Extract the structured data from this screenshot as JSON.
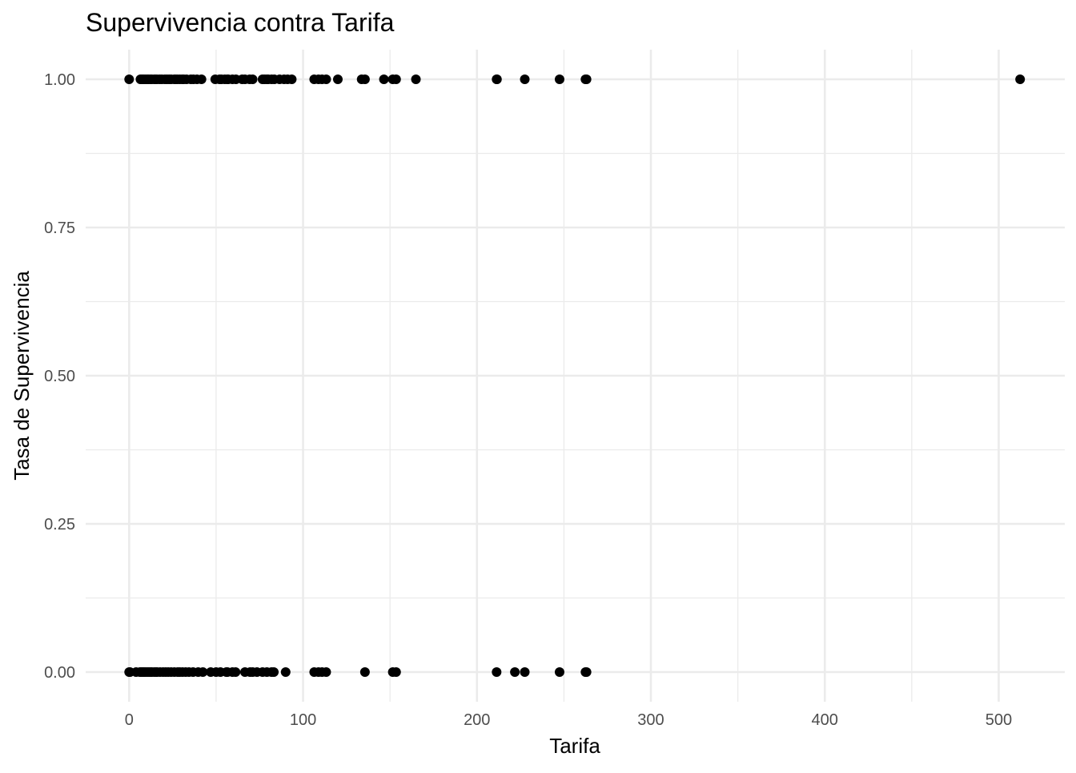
{
  "chart_data": {
    "type": "scatter",
    "title": "Supervivencia contra Tarifa",
    "xlabel": "Tarifa",
    "ylabel": "Tasa de Supervivencia",
    "xlim": [
      -25,
      538
    ],
    "ylim": [
      -0.05,
      1.05
    ],
    "x_ticks": [
      0,
      100,
      200,
      300,
      400,
      500
    ],
    "x_tick_labels": [
      "0",
      "100",
      "200",
      "300",
      "400",
      "500"
    ],
    "x_minor_ticks": [
      50,
      150,
      250,
      350,
      450
    ],
    "y_ticks": [
      0,
      0.25,
      0.5,
      0.75,
      1
    ],
    "y_tick_labels": [
      "0.00",
      "0.25",
      "0.50",
      "0.75",
      "1.00"
    ],
    "y_minor_ticks": [
      0.125,
      0.375,
      0.625,
      0.875
    ],
    "grid": true,
    "point_color": "#000000",
    "series": [
      {
        "points": [
          [
            0,
            1
          ],
          [
            6.5,
            1
          ],
          [
            7.2,
            1
          ],
          [
            7.8,
            1
          ],
          [
            8.5,
            1
          ],
          [
            9.5,
            1
          ],
          [
            10.5,
            1
          ],
          [
            11.1,
            1
          ],
          [
            12.3,
            1
          ],
          [
            13,
            1
          ],
          [
            14.5,
            1
          ],
          [
            15.2,
            1
          ],
          [
            16,
            1
          ],
          [
            17.5,
            1
          ],
          [
            18.8,
            1
          ],
          [
            20.5,
            1
          ],
          [
            21.7,
            1
          ],
          [
            23,
            1
          ],
          [
            24.2,
            1
          ],
          [
            26,
            1
          ],
          [
            26.6,
            1
          ],
          [
            27.7,
            1
          ],
          [
            29.1,
            1
          ],
          [
            30.5,
            1
          ],
          [
            31.4,
            1
          ],
          [
            33,
            1
          ],
          [
            35.5,
            1
          ],
          [
            37,
            1
          ],
          [
            39,
            1
          ],
          [
            41.6,
            1
          ],
          [
            49.5,
            1
          ],
          [
            52,
            1
          ],
          [
            53.1,
            1
          ],
          [
            55,
            1
          ],
          [
            56.5,
            1
          ],
          [
            57,
            1
          ],
          [
            59.4,
            1
          ],
          [
            61.4,
            1
          ],
          [
            65,
            1
          ],
          [
            66.6,
            1
          ],
          [
            69.3,
            1
          ],
          [
            71,
            1
          ],
          [
            76.7,
            1
          ],
          [
            77.9,
            1
          ],
          [
            79.2,
            1
          ],
          [
            80,
            1
          ],
          [
            81.9,
            1
          ],
          [
            83.5,
            1
          ],
          [
            86.5,
            1
          ],
          [
            89.1,
            1
          ],
          [
            91.1,
            1
          ],
          [
            93.5,
            1
          ],
          [
            106.4,
            1
          ],
          [
            108.9,
            1
          ],
          [
            110.9,
            1
          ],
          [
            113.3,
            1
          ],
          [
            120,
            1
          ],
          [
            133.7,
            1
          ],
          [
            135.6,
            1
          ],
          [
            146.5,
            1
          ],
          [
            151.6,
            1
          ],
          [
            153.5,
            1
          ],
          [
            164.9,
            1
          ],
          [
            211.3,
            1
          ],
          [
            211.5,
            1
          ],
          [
            227.5,
            1
          ],
          [
            247.5,
            1
          ],
          [
            262.4,
            1
          ],
          [
            263,
            1
          ],
          [
            512.3,
            1
          ],
          [
            0,
            0
          ],
          [
            0.5,
            0
          ],
          [
            4.0,
            0
          ],
          [
            6.2,
            0
          ],
          [
            7.0,
            0
          ],
          [
            7.25,
            0
          ],
          [
            7.75,
            0
          ],
          [
            8.05,
            0
          ],
          [
            8.66,
            0
          ],
          [
            9.5,
            0
          ],
          [
            10.5,
            0
          ],
          [
            11.5,
            0
          ],
          [
            12.5,
            0
          ],
          [
            13,
            0
          ],
          [
            14.45,
            0
          ],
          [
            15.5,
            0
          ],
          [
            16.1,
            0
          ],
          [
            17.8,
            0
          ],
          [
            19.5,
            0
          ],
          [
            21,
            0
          ],
          [
            22.5,
            0
          ],
          [
            24.15,
            0
          ],
          [
            26,
            0
          ],
          [
            27.9,
            0
          ],
          [
            29.1,
            0
          ],
          [
            30.7,
            0
          ],
          [
            32.5,
            0
          ],
          [
            34.4,
            0
          ],
          [
            36.75,
            0
          ],
          [
            39.7,
            0
          ],
          [
            42.4,
            0
          ],
          [
            46.9,
            0
          ],
          [
            50,
            0
          ],
          [
            52.5,
            0
          ],
          [
            55.9,
            0
          ],
          [
            56.5,
            0
          ],
          [
            59.4,
            0
          ],
          [
            61.2,
            0
          ],
          [
            66.6,
            0
          ],
          [
            69.55,
            0
          ],
          [
            71,
            0
          ],
          [
            73.5,
            0
          ],
          [
            76.7,
            0
          ],
          [
            79.2,
            0
          ],
          [
            81.9,
            0
          ],
          [
            83.2,
            0
          ],
          [
            90,
            0
          ],
          [
            106.4,
            0
          ],
          [
            108.9,
            0
          ],
          [
            110.9,
            0
          ],
          [
            113.3,
            0
          ],
          [
            135.6,
            0
          ],
          [
            151.6,
            0
          ],
          [
            153.5,
            0
          ],
          [
            211.3,
            0
          ],
          [
            221.8,
            0
          ],
          [
            227.5,
            0
          ],
          [
            247.5,
            0
          ],
          [
            262.4,
            0
          ],
          [
            263,
            0
          ]
        ]
      }
    ]
  }
}
